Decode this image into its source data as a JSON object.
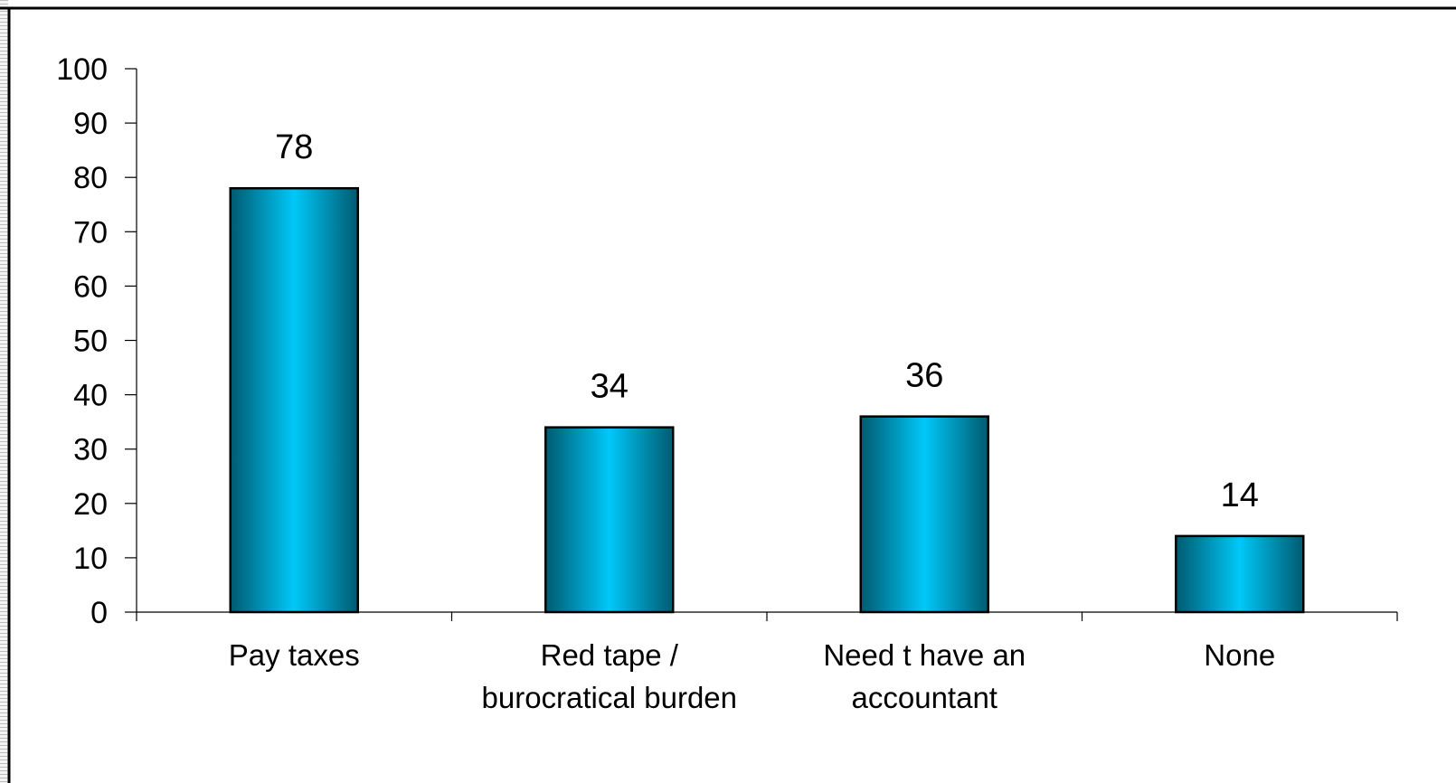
{
  "chart_data": {
    "type": "bar",
    "categories": [
      [
        "Pay taxes"
      ],
      [
        "Red tape /",
        "burocratical burden"
      ],
      [
        "Need t have an",
        "accountant"
      ],
      [
        "None"
      ]
    ],
    "values": [
      78,
      34,
      36,
      14
    ],
    "data_labels": [
      "78",
      "34",
      "36",
      "14"
    ],
    "title": "",
    "xlabel": "",
    "ylabel": "",
    "ylim": [
      0,
      100
    ],
    "yticks": [
      0,
      10,
      20,
      30,
      40,
      50,
      60,
      70,
      80,
      90,
      100
    ],
    "grid": false,
    "legend": "none",
    "bar_gradient": [
      "#005a70",
      "#00c8f8",
      "#005a70"
    ],
    "axis_color": "#000000"
  }
}
